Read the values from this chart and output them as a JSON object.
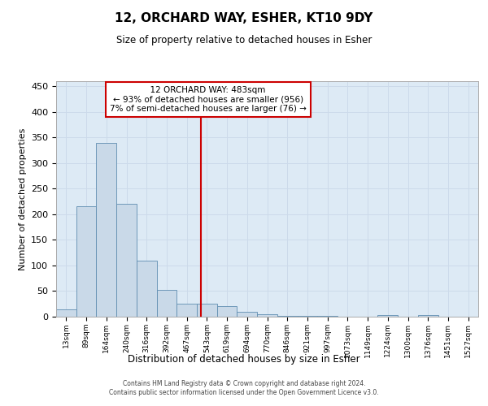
{
  "title": "12, ORCHARD WAY, ESHER, KT10 9DY",
  "subtitle": "Size of property relative to detached houses in Esher",
  "xlabel": "Distribution of detached houses by size in Esher",
  "ylabel": "Number of detached properties",
  "bar_values": [
    15,
    215,
    340,
    220,
    110,
    52,
    25,
    25,
    20,
    10,
    5,
    2,
    2,
    1,
    0,
    0,
    3,
    0,
    3
  ],
  "bin_labels": [
    "13sqm",
    "89sqm",
    "164sqm",
    "240sqm",
    "316sqm",
    "392sqm",
    "467sqm",
    "543sqm",
    "619sqm",
    "694sqm",
    "770sqm",
    "846sqm",
    "921sqm",
    "997sqm",
    "1073sqm",
    "1149sqm",
    "1224sqm",
    "1300sqm",
    "1376sqm",
    "1451sqm",
    "1527sqm"
  ],
  "bar_color": "#c9d9e8",
  "bar_edge_color": "#5f8db0",
  "grid_color": "#ccdaea",
  "background_color": "#ddeaf5",
  "vline_color": "#cc0000",
  "annotation_text": "  12 ORCHARD WAY: 483sqm  \n← 93% of detached houses are smaller (956)\n7% of semi-detached houses are larger (76) →",
  "annotation_box_color": "#cc0000",
  "ylim": [
    0,
    460
  ],
  "yticks": [
    0,
    50,
    100,
    150,
    200,
    250,
    300,
    350,
    400,
    450
  ],
  "footer_line1": "Contains HM Land Registry data © Crown copyright and database right 2024.",
  "footer_line2": "Contains public sector information licensed under the Open Government Licence v3.0."
}
